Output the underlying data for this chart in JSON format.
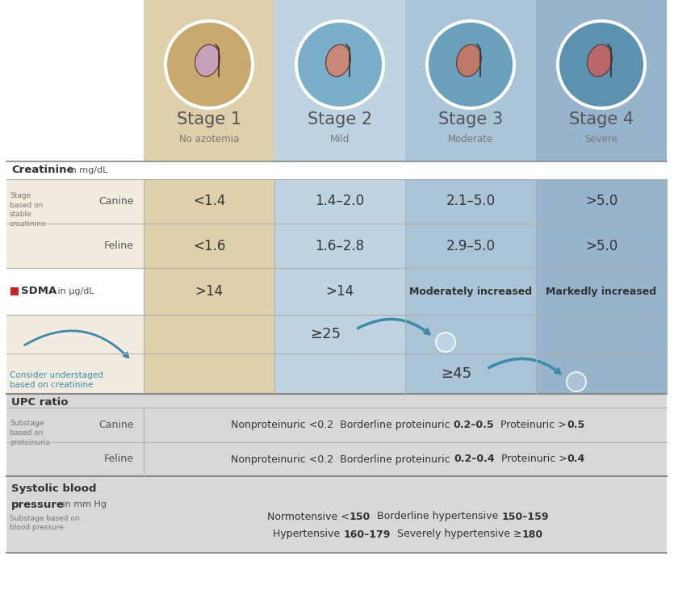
{
  "fig_width": 8.35,
  "fig_height": 7.31,
  "bg_color": "#ffffff",
  "col1_color": "#ddd0aa",
  "col2_color": "#bed4e2",
  "col3_color": "#aac4d8",
  "col4_color": "#96b4cc",
  "left_bg_color": "#f2ece0",
  "white_row_bg": "#ffffff",
  "grey_section_bg": "#d8d8d8",
  "circle1_color": "#c9a96e",
  "circle2_color": "#7aaec8",
  "circle3_color": "#6aa0bc",
  "circle4_color": "#5a92b0",
  "circle_border": "#e8e8e8",
  "stage_labels": [
    "Stage 1",
    "Stage 2",
    "Stage 3",
    "Stage 4"
  ],
  "stage_sublabels": [
    "No azotemia",
    "Mild",
    "Moderate",
    "Severe"
  ],
  "creatinine_canine": [
    "<1.4",
    "1.4–2.0",
    "2.1–5.0",
    ">5.0"
  ],
  "creatinine_feline": [
    "<1.6",
    "1.6–2.8",
    "2.9–5.0",
    ">5.0"
  ],
  "sdma_values": [
    ">14",
    ">14",
    "Moderately increased",
    "Markedly increased"
  ],
  "arrow_color": "#3a8aaa",
  "consider_text_color": "#3a8aaa",
  "sdma_red": "#cc2222",
  "divider_color": "#b0b0b0",
  "text_dark": "#333333",
  "text_mid": "#555555",
  "text_light": "#777777"
}
